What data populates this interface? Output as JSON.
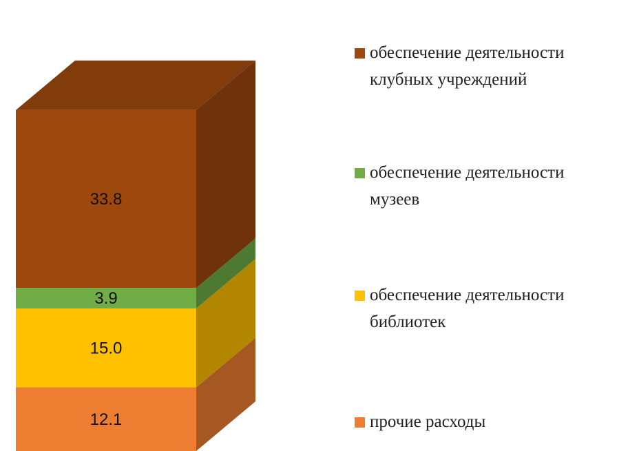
{
  "chart_data": {
    "type": "bar",
    "stacked": true,
    "three_d": true,
    "title": "",
    "xlabel": "",
    "ylabel": "",
    "categories": [
      ""
    ],
    "series": [
      {
        "name": "прочие расходы",
        "values": [
          12.1
        ],
        "color": "#ED7D31",
        "label": "12.1"
      },
      {
        "name": "обеспечение деятельности библиотек",
        "values": [
          15.0
        ],
        "color": "#FFC000",
        "label": "15.0"
      },
      {
        "name": "обеспечение деятельности музеев",
        "values": [
          3.9
        ],
        "color": "#70AD47",
        "label": "3.9"
      },
      {
        "name": "обеспечение деятельности клубных учреждений",
        "values": [
          33.8
        ],
        "color": "#9E480E",
        "label": "33.8"
      }
    ],
    "legend": {
      "position": "right",
      "order": "top-to-bottom reversed",
      "entries": [
        {
          "lines": [
            "обеспечение деятельности",
            "клубных учреждений"
          ],
          "color": "#9E480E"
        },
        {
          "lines": [
            "обеспечение деятельности",
            "музеев"
          ],
          "color": "#70AD47"
        },
        {
          "lines": [
            "обеспечение деятельности",
            "библиотек"
          ],
          "color": "#FFC000"
        },
        {
          "lines": [
            "прочие расходы"
          ],
          "color": "#ED7D31"
        }
      ]
    },
    "grid": false
  }
}
